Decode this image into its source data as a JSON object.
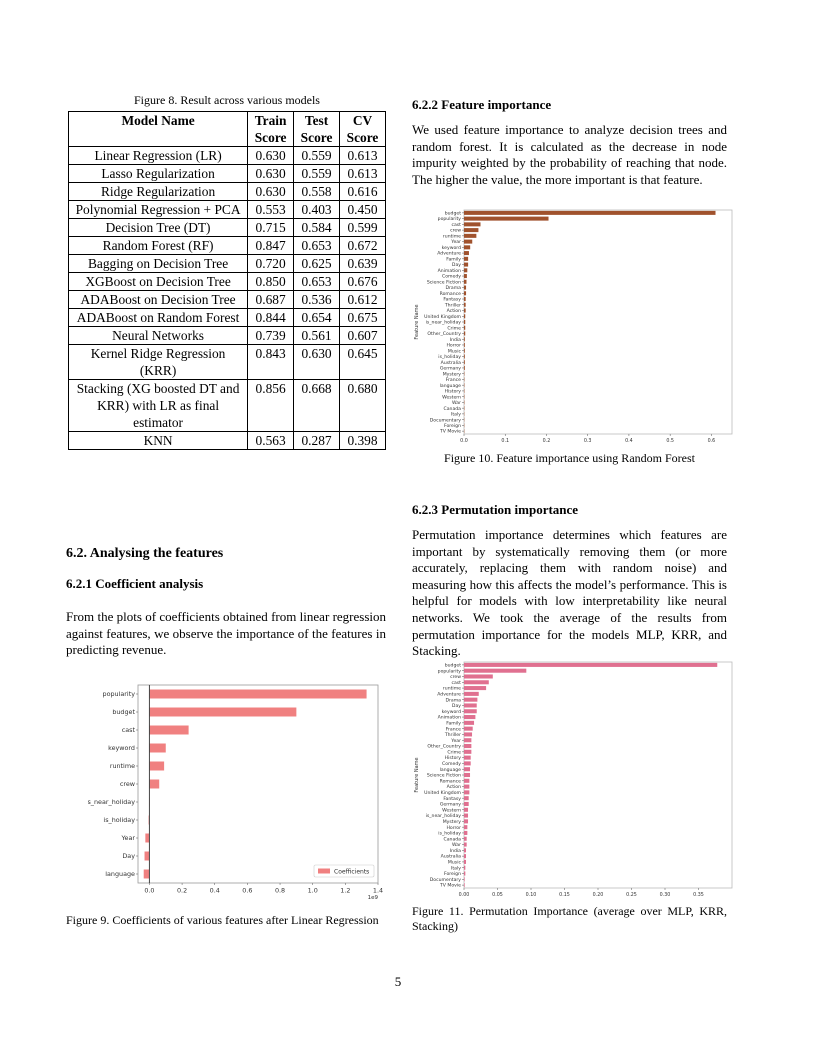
{
  "table_caption": "Figure 8. Result across various models",
  "table": {
    "headers": [
      "Model Name",
      "Train Score",
      "Test Score",
      "CV Score"
    ],
    "rows": [
      [
        "Linear Regression (LR)",
        "0.630",
        "0.559",
        "0.613"
      ],
      [
        "Lasso Regularization",
        "0.630",
        "0.559",
        "0.613"
      ],
      [
        "Ridge Regularization",
        "0.630",
        "0.558",
        "0.616"
      ],
      [
        "Polynomial Regression + PCA",
        "0.553",
        "0.403",
        "0.450"
      ],
      [
        "Decision Tree (DT)",
        "0.715",
        "0.584",
        "0.599"
      ],
      [
        "Random Forest (RF)",
        "0.847",
        "0.653",
        "0.672"
      ],
      [
        "Bagging on Decision Tree",
        "0.720",
        "0.625",
        "0.639"
      ],
      [
        "XGBoost on Decision Tree",
        "0.850",
        "0.653",
        "0.676"
      ],
      [
        "ADABoost on Decision Tree",
        "0.687",
        "0.536",
        "0.612"
      ],
      [
        "ADABoost on Random Forest",
        "0.844",
        "0.654",
        "0.675"
      ],
      [
        "Neural Networks",
        "0.739",
        "0.561",
        "0.607"
      ],
      [
        "Kernel Ridge Regression (KRR)",
        "0.843",
        "0.630",
        "0.645"
      ],
      [
        "Stacking (XG boosted DT and KRR) with LR as final estimator",
        "0.856",
        "0.668",
        "0.680"
      ],
      [
        "KNN",
        "0.563",
        "0.287",
        "0.398"
      ]
    ]
  },
  "section_62": {
    "title": "6.2. Analysing the features",
    "sub_621": {
      "title": "6.2.1   Coefficient analysis",
      "text": "From the plots of coefficients obtained from linear regression against features, we observe the importance of the features in predicting revenue."
    }
  },
  "sub_622": {
    "title": "6.2.2   Feature importance",
    "text": "We used feature importance to analyze decision trees and random forest. It is calculated as the decrease in node impurity weighted by the probability of reaching that node. The higher the value, the more important is that feature."
  },
  "sub_623": {
    "title": "6.2.3   Permutation importance",
    "text": "Permutation importance determines which features are important by systematically removing them (or more accurately, replacing them with random noise) and measuring how this affects the model’s performance. This is helpful for models with low interpretability like neural networks. We took the average of the results from permutation importance for the models MLP, KRR, and Stacking."
  },
  "fig9_caption": "Figure 9. Coefficients of various features after Linear Regression",
  "fig10_caption": "Figure 10. Feature importance using Random Forest",
  "fig11_caption": "Figure 11. Permutation Importance (average over MLP, KRR, Stacking)",
  "page_number": "5",
  "chart_data": [
    {
      "id": "fig9",
      "type": "bar",
      "orientation": "horizontal",
      "categories": [
        "popularity",
        "budget",
        "cast",
        "keyword",
        "runtime",
        "crew",
        "is_near_holiday",
        "is_holiday",
        "Year",
        "Day",
        "language"
      ],
      "values": [
        1.33,
        0.9,
        0.24,
        0.1,
        0.09,
        0.06,
        0.0,
        -0.005,
        -0.025,
        -0.03,
        -0.035
      ],
      "xlim": [
        -0.07,
        1.4
      ],
      "xticks": [
        0.0,
        0.2,
        0.4,
        0.6,
        0.8,
        1.0,
        1.2,
        1.4
      ],
      "tick_labels": [
        "0.0",
        "0.2",
        "0.4",
        "0.6",
        "0.8",
        "1.0",
        "1.2",
        "1.4"
      ],
      "offset_label": "1e9",
      "legend": "Coefficients",
      "legend_position": "bottom-right",
      "color": "#f08080"
    },
    {
      "id": "fig10",
      "type": "bar",
      "orientation": "horizontal",
      "ylabel": "Feature Name",
      "categories": [
        "budget",
        "popularity",
        "cast",
        "crew",
        "runtime",
        "Year",
        "keyword",
        "Adventure",
        "Family",
        "Day",
        "Animation",
        "Comedy",
        "Science Fiction",
        "Drama",
        "Romance",
        "Fantasy",
        "Thriller",
        "Action",
        "United Kingdom",
        "is_near_holiday",
        "Crime",
        "Other_Country",
        "India",
        "Horror",
        "Music",
        "is_holiday",
        "Australia",
        "Germany",
        "Mystery",
        "France",
        "language",
        "History",
        "Western",
        "War",
        "Canada",
        "Italy",
        "Documentary",
        "Foreign",
        "TV Movie"
      ],
      "values": [
        0.61,
        0.205,
        0.04,
        0.035,
        0.03,
        0.02,
        0.015,
        0.012,
        0.01,
        0.01,
        0.008,
        0.007,
        0.006,
        0.005,
        0.005,
        0.004,
        0.004,
        0.004,
        0.003,
        0.003,
        0.003,
        0.003,
        0.002,
        0.002,
        0.002,
        0.002,
        0.002,
        0.002,
        0.001,
        0.001,
        0.001,
        0.001,
        0.001,
        0.001,
        0.001,
        0.0005,
        0.0005,
        0.0003,
        0.0002
      ],
      "xlim": [
        0,
        0.65
      ],
      "xticks": [
        0.0,
        0.1,
        0.2,
        0.3,
        0.4,
        0.5,
        0.6
      ],
      "tick_labels": [
        "0.0",
        "0.1",
        "0.2",
        "0.3",
        "0.4",
        "0.5",
        "0.6"
      ],
      "color": "#a0522d"
    },
    {
      "id": "fig11",
      "type": "bar",
      "orientation": "horizontal",
      "ylabel": "Feature Name",
      "categories": [
        "budget",
        "popularity",
        "crew",
        "cast",
        "runtime",
        "Adventure",
        "Drama",
        "Day",
        "keyword",
        "Animation",
        "Family",
        "France",
        "Thriller",
        "Year",
        "Other_Country",
        "Crime",
        "History",
        "Comedy",
        "language",
        "Science Fiction",
        "Romance",
        "Action",
        "United Kingdom",
        "Fantasy",
        "Germany",
        "Western",
        "is_near_holiday",
        "Mystery",
        "Horror",
        "is_holiday",
        "Canada",
        "War",
        "India",
        "Australia",
        "Music",
        "Italy",
        "Foreign",
        "Documentary",
        "TV Movie"
      ],
      "values": [
        0.378,
        0.093,
        0.043,
        0.037,
        0.033,
        0.022,
        0.02,
        0.019,
        0.019,
        0.017,
        0.015,
        0.013,
        0.012,
        0.011,
        0.011,
        0.011,
        0.01,
        0.01,
        0.009,
        0.009,
        0.008,
        0.008,
        0.008,
        0.007,
        0.007,
        0.006,
        0.006,
        0.006,
        0.005,
        0.005,
        0.004,
        0.004,
        0.003,
        0.003,
        0.003,
        0.002,
        0.002,
        0.001,
        0.001
      ],
      "xlim": [
        0,
        0.4
      ],
      "xticks": [
        0.0,
        0.05,
        0.1,
        0.15,
        0.2,
        0.25,
        0.3,
        0.35
      ],
      "tick_labels": [
        "0.00",
        "0.05",
        "0.10",
        "0.15",
        "0.20",
        "0.25",
        "0.30",
        "0.35"
      ],
      "color": "#e07090"
    }
  ]
}
